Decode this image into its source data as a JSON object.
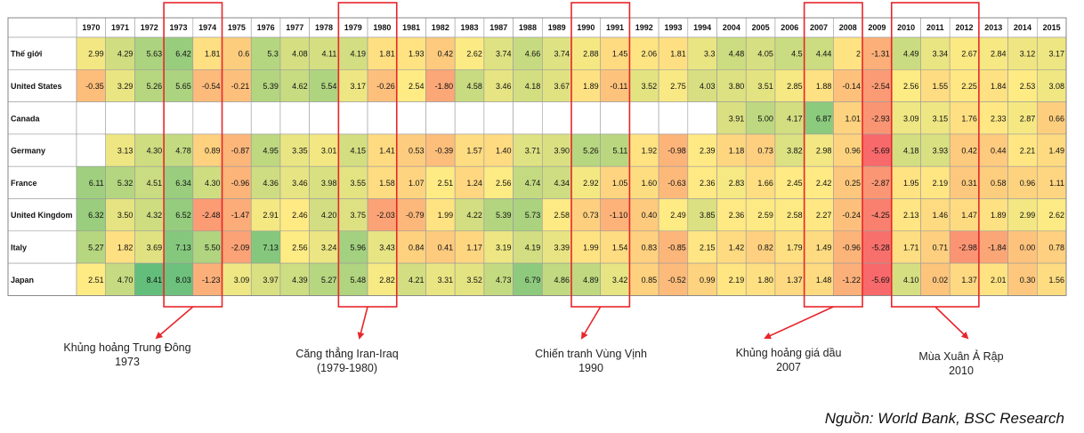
{
  "chart_data": {
    "type": "heatmap",
    "x": [
      "1970",
      "1971",
      "1972",
      "1973",
      "1974",
      "1975",
      "1976",
      "1977",
      "1978",
      "1979",
      "1980",
      "1981",
      "1982",
      "1983",
      "1987",
      "1988",
      "1989",
      "1990",
      "1991",
      "1992",
      "1993",
      "1994",
      "2004",
      "2005",
      "2006",
      "2007",
      "2008",
      "2009",
      "2010",
      "2011",
      "2012",
      "2013",
      "2014",
      "2015"
    ],
    "y": [
      "Thế giới",
      "United States",
      "Canada",
      "Germany",
      "France",
      "United Kingdom",
      "Italy",
      "Japan"
    ],
    "values": [
      [
        2.99,
        4.29,
        5.63,
        6.42,
        1.81,
        0.6,
        5.3,
        4.08,
        4.11,
        4.19,
        1.81,
        1.93,
        0.42,
        2.62,
        3.74,
        4.66,
        3.74,
        2.88,
        1.45,
        2.06,
        1.81,
        3.3,
        4.48,
        4.05,
        4.5,
        4.44,
        2,
        -1.31,
        4.49,
        3.34,
        2.67,
        2.84,
        3.12,
        3.17
      ],
      [
        -0.35,
        3.29,
        5.26,
        5.65,
        -0.54,
        -0.21,
        5.39,
        4.62,
        5.54,
        3.17,
        -0.26,
        2.54,
        -1.8,
        4.58,
        3.46,
        4.18,
        3.67,
        1.89,
        -0.11,
        3.52,
        2.75,
        4.03,
        3.8,
        3.51,
        2.85,
        1.88,
        -0.14,
        -2.54,
        2.56,
        1.55,
        2.25,
        1.84,
        2.53,
        3.08
      ],
      [
        null,
        null,
        null,
        null,
        null,
        null,
        null,
        null,
        null,
        null,
        null,
        null,
        null,
        null,
        null,
        null,
        null,
        null,
        null,
        null,
        null,
        null,
        3.91,
        5.0,
        4.17,
        6.87,
        1.01,
        -2.93,
        3.09,
        3.15,
        1.76,
        2.33,
        2.87,
        0.66
      ],
      [
        null,
        3.13,
        4.3,
        4.78,
        0.89,
        -0.87,
        4.95,
        3.35,
        3.01,
        4.15,
        1.41,
        0.53,
        -0.39,
        1.57,
        1.4,
        3.71,
        3.9,
        5.26,
        5.11,
        1.92,
        -0.98,
        2.39,
        1.18,
        0.73,
        3.82,
        2.98,
        0.96,
        -5.69,
        4.18,
        3.93,
        0.42,
        0.44,
        2.21,
        1.49
      ],
      [
        6.11,
        5.32,
        4.51,
        6.34,
        4.3,
        -0.96,
        4.36,
        3.46,
        3.98,
        3.55,
        1.58,
        1.07,
        2.51,
        1.24,
        2.56,
        4.74,
        4.34,
        2.92,
        1.05,
        1.6,
        -0.63,
        2.36,
        2.83,
        1.66,
        2.45,
        2.42,
        0.25,
        -2.87,
        1.95,
        2.19,
        0.31,
        0.58,
        0.96,
        1.11
      ],
      [
        6.32,
        3.5,
        4.32,
        6.52,
        -2.48,
        -1.47,
        2.91,
        2.46,
        4.2,
        3.75,
        -2.03,
        -0.79,
        1.99,
        4.22,
        5.39,
        5.73,
        2.58,
        0.73,
        -1.1,
        0.4,
        2.49,
        3.85,
        2.36,
        2.59,
        2.58,
        2.27,
        -0.24,
        -4.25,
        2.13,
        1.46,
        1.47,
        1.89,
        2.99,
        2.62
      ],
      [
        5.27,
        1.82,
        3.69,
        7.13,
        5.5,
        -2.09,
        7.13,
        2.56,
        3.24,
        5.96,
        3.43,
        0.84,
        0.41,
        1.17,
        3.19,
        4.19,
        3.39,
        1.99,
        1.54,
        0.83,
        -0.85,
        2.15,
        1.42,
        0.82,
        1.79,
        1.49,
        -0.96,
        -5.28,
        1.71,
        0.71,
        -2.98,
        -1.84,
        0.0,
        0.78
      ],
      [
        2.51,
        4.7,
        8.41,
        8.03,
        -1.23,
        3.09,
        3.97,
        4.39,
        5.27,
        5.48,
        2.82,
        4.21,
        3.31,
        3.52,
        4.73,
        6.79,
        4.86,
        4.89,
        3.42,
        0.85,
        -0.52,
        0.99,
        2.19,
        1.8,
        1.37,
        1.48,
        -1.22,
        -5.69,
        4.1,
        0.02,
        1.37,
        2.01,
        0.3,
        1.56
      ]
    ],
    "labels": [
      [
        "2.99",
        "4.29",
        "5.63",
        "6.42",
        "1.81",
        "0.6",
        "5.3",
        "4.08",
        "4.11",
        "4.19",
        "1.81",
        "1.93",
        "0.42",
        "2.62",
        "3.74",
        "4.66",
        "3.74",
        "2.88",
        "1.45",
        "2.06",
        "1.81",
        "3.3",
        "4.48",
        "4.05",
        "4.5",
        "4.44",
        "2",
        "-1.31",
        "4.49",
        "3.34",
        "2.67",
        "2.84",
        "3.12",
        "3.17"
      ],
      [
        "-0.35",
        "3.29",
        "5.26",
        "5.65",
        "-0.54",
        "-0.21",
        "5.39",
        "4.62",
        "5.54",
        "3.17",
        "-0.26",
        "2.54",
        "-1.80",
        "4.58",
        "3.46",
        "4.18",
        "3.67",
        "1.89",
        "-0.11",
        "3.52",
        "2.75",
        "4.03",
        "3.80",
        "3.51",
        "2.85",
        "1.88",
        "-0.14",
        "-2.54",
        "2.56",
        "1.55",
        "2.25",
        "1.84",
        "2.53",
        "3.08"
      ],
      [
        null,
        null,
        null,
        null,
        null,
        null,
        null,
        null,
        null,
        null,
        null,
        null,
        null,
        null,
        null,
        null,
        null,
        null,
        null,
        null,
        null,
        null,
        "3.91",
        "5.00",
        "4.17",
        "6.87",
        "1.01",
        "-2.93",
        "3.09",
        "3.15",
        "1.76",
        "2.33",
        "2.87",
        "0.66"
      ],
      [
        null,
        "3.13",
        "4.30",
        "4.78",
        "0.89",
        "-0.87",
        "4.95",
        "3.35",
        "3.01",
        "4.15",
        "1.41",
        "0.53",
        "-0.39",
        "1.57",
        "1.40",
        "3.71",
        "3.90",
        "5.26",
        "5.11",
        "1.92",
        "-0.98",
        "2.39",
        "1.18",
        "0.73",
        "3.82",
        "2.98",
        "0.96",
        "-5.69",
        "4.18",
        "3.93",
        "0.42",
        "0.44",
        "2.21",
        "1.49"
      ],
      [
        "6.11",
        "5.32",
        "4.51",
        "6.34",
        "4.30",
        "-0.96",
        "4.36",
        "3.46",
        "3.98",
        "3.55",
        "1.58",
        "1.07",
        "2.51",
        "1.24",
        "2.56",
        "4.74",
        "4.34",
        "2.92",
        "1.05",
        "1.60",
        "-0.63",
        "2.36",
        "2.83",
        "1.66",
        "2.45",
        "2.42",
        "0.25",
        "-2.87",
        "1.95",
        "2.19",
        "0.31",
        "0.58",
        "0.96",
        "1.11"
      ],
      [
        "6.32",
        "3.50",
        "4.32",
        "6.52",
        "-2.48",
        "-1.47",
        "2.91",
        "2.46",
        "4.20",
        "3.75",
        "-2.03",
        "-0.79",
        "1.99",
        "4.22",
        "5.39",
        "5.73",
        "2.58",
        "0.73",
        "-1.10",
        "0.40",
        "2.49",
        "3.85",
        "2.36",
        "2.59",
        "2.58",
        "2.27",
        "-0.24",
        "-4.25",
        "2.13",
        "1.46",
        "1.47",
        "1.89",
        "2.99",
        "2.62"
      ],
      [
        "5.27",
        "1.82",
        "3.69",
        "7.13",
        "5.50",
        "-2.09",
        "7.13",
        "2.56",
        "3.24",
        "5.96",
        "3.43",
        "0.84",
        "0.41",
        "1.17",
        "3.19",
        "4.19",
        "3.39",
        "1.99",
        "1.54",
        "0.83",
        "-0.85",
        "2.15",
        "1.42",
        "0.82",
        "1.79",
        "1.49",
        "-0.96",
        "-5.28",
        "1.71",
        "0.71",
        "-2.98",
        "-1.84",
        "0.00",
        "0.78"
      ],
      [
        "2.51",
        "4.70",
        "8.41",
        "8.03",
        "-1.23",
        "3.09",
        "3.97",
        "4.39",
        "5.27",
        "5.48",
        "2.82",
        "4.21",
        "3.31",
        "3.52",
        "4.73",
        "6.79",
        "4.86",
        "4.89",
        "3.42",
        "0.85",
        "-0.52",
        "0.99",
        "2.19",
        "1.80",
        "1.37",
        "1.48",
        "-1.22",
        "-5.69",
        "4.10",
        "0.02",
        "1.37",
        "2.01",
        "0.30",
        "1.56"
      ]
    ],
    "color_scale": {
      "low": "#f8696b",
      "mid": "#ffeb84",
      "high": "#63be7b"
    },
    "highlights": [
      {
        "columns": [
          "1973",
          "1974"
        ],
        "label": [
          "Khủng hoảng Trung Đông",
          "1973"
        ]
      },
      {
        "columns": [
          "1979",
          "1980"
        ],
        "label": [
          "Căng thẳng Iran-Iraq",
          "(1979-1980)"
        ]
      },
      {
        "columns": [
          "1990",
          "1991"
        ],
        "label": [
          "Chiến tranh Vùng Vịnh",
          "1990"
        ]
      },
      {
        "columns": [
          "2007",
          "2008"
        ],
        "label": [
          "Khủng hoảng giá dầu",
          "2007"
        ]
      },
      {
        "columns": [
          "2010",
          "2011",
          "2012"
        ],
        "label": [
          "Mùa Xuân Ả Rập",
          "2010"
        ]
      }
    ],
    "highlight_color": "#e8262b",
    "source": "Nguồn: World Bank, BSC Research"
  }
}
